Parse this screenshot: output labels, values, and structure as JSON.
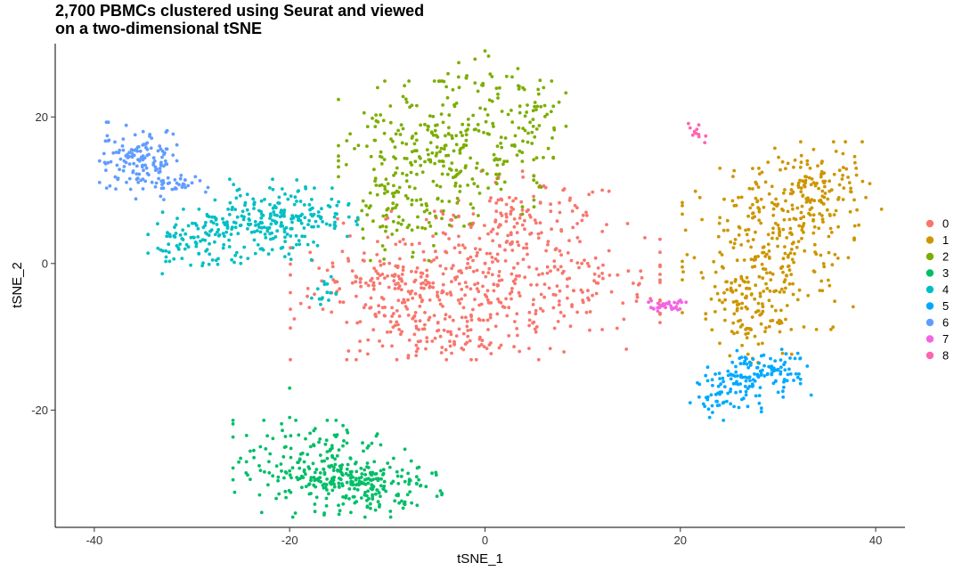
{
  "chart_data": {
    "type": "scatter",
    "title_lines": [
      "2,700 PBMCs clustered using Seurat and viewed",
      "on a two-dimensional tSNE"
    ],
    "xlabel": "tSNE_1",
    "ylabel": "tSNE_2",
    "xlim": [
      -44,
      43
    ],
    "ylim": [
      -36,
      30
    ],
    "xticks": [
      -40,
      -20,
      0,
      20,
      40
    ],
    "yticks": [
      -20,
      0,
      20
    ],
    "grid": false,
    "legend_position": "right",
    "series": [
      {
        "name": "0",
        "color": "#F8766D",
        "point_count": 690,
        "region": [
          {
            "x": -1,
            "y": -3,
            "sx": 8.6,
            "sy": 4.6,
            "w": 7
          },
          {
            "x": -9,
            "y": -4,
            "sx": 3,
            "sy": 3,
            "w": 1
          },
          {
            "x": 5,
            "y": 6,
            "sx": 3.5,
            "sy": 3,
            "w": 1.5
          },
          {
            "x": -4,
            "y": -10,
            "sx": 4,
            "sy": 1.5,
            "w": 1
          }
        ],
        "samples": [
          [
            -11,
            3
          ],
          [
            -7,
            -12
          ],
          [
            -2,
            -11
          ],
          [
            3,
            5
          ],
          [
            8,
            10
          ],
          [
            10,
            -5
          ],
          [
            -6,
            6
          ],
          [
            0,
            0
          ],
          [
            5,
            -8
          ],
          [
            12,
            10
          ]
        ]
      },
      {
        "name": "1",
        "color": "#CD9600",
        "point_count": 480,
        "region": [
          {
            "x": 29,
            "y": 2,
            "sx": 4,
            "sy": 5,
            "w": 4
          },
          {
            "x": 34,
            "y": 10,
            "sx": 3,
            "sy": 3,
            "w": 2
          },
          {
            "x": 27,
            "y": -7,
            "sx": 2,
            "sy": 3,
            "w": 1
          }
        ],
        "samples": [
          [
            22,
            9
          ],
          [
            38,
            13
          ],
          [
            39,
            9
          ],
          [
            24,
            -5
          ],
          [
            28,
            -11
          ],
          [
            33,
            14
          ],
          [
            26,
            5
          ]
        ]
      },
      {
        "name": "2",
        "color": "#7CAE00",
        "point_count": 420,
        "region": [
          {
            "x": -4,
            "y": 15,
            "sx": 5,
            "sy": 4.5,
            "w": 5
          },
          {
            "x": -9,
            "y": 7,
            "sx": 2,
            "sy": 3,
            "w": 1
          },
          {
            "x": 5,
            "y": 20,
            "sx": 1.5,
            "sy": 3,
            "w": 0.7
          },
          {
            "x": -1,
            "y": 25,
            "sx": 2,
            "sy": 1.5,
            "w": 0.5
          }
        ],
        "samples": [
          [
            -11,
            24
          ],
          [
            0,
            29
          ],
          [
            6,
            24
          ],
          [
            -13,
            6
          ],
          [
            5,
            12
          ],
          [
            -8,
            22
          ]
        ]
      },
      {
        "name": "3",
        "color": "#00BE67",
        "point_count": 370,
        "region": [
          {
            "x": -17,
            "y": -28,
            "sx": 4,
            "sy": 3,
            "w": 3
          },
          {
            "x": -11,
            "y": -30,
            "sx": 3,
            "sy": 2,
            "w": 1.5
          }
        ],
        "samples": [
          [
            -23,
            -25
          ],
          [
            -20,
            -17
          ],
          [
            -7,
            -30
          ],
          [
            -15,
            -33
          ],
          [
            -20,
            -21
          ]
        ]
      },
      {
        "name": "4",
        "color": "#00BFC4",
        "point_count": 350,
        "region": [
          {
            "x": -29,
            "y": 3,
            "sx": 2.5,
            "sy": 2,
            "w": 2
          },
          {
            "x": -22,
            "y": 6,
            "sx": 3,
            "sy": 2.5,
            "w": 3
          },
          {
            "x": -17,
            "y": 7,
            "sx": 2,
            "sy": 1.5,
            "w": 1
          },
          {
            "x": -16,
            "y": -4,
            "sx": 1,
            "sy": 1,
            "w": 0.4
          }
        ],
        "samples": [
          [
            -33,
            7
          ],
          [
            -25,
            0
          ],
          [
            -14,
            8
          ],
          [
            -16,
            -5
          ]
        ]
      },
      {
        "name": "5",
        "color": "#00A9FF",
        "point_count": 170,
        "region": [
          {
            "x": 25,
            "y": -17,
            "sx": 1.5,
            "sy": 2,
            "w": 1.5
          },
          {
            "x": 29,
            "y": -15,
            "sx": 2,
            "sy": 1.5,
            "w": 1.5
          }
        ],
        "samples": [
          [
            21,
            -19
          ],
          [
            33,
            -14
          ],
          [
            23,
            -21
          ]
        ]
      },
      {
        "name": "6",
        "color": "#619CFF",
        "point_count": 170,
        "region": [
          {
            "x": -35.5,
            "y": 14,
            "sx": 1.8,
            "sy": 2.4,
            "w": 3
          },
          {
            "x": -31,
            "y": 11,
            "sx": 1.2,
            "sy": 0.6,
            "w": 0.5
          }
        ],
        "samples": [
          [
            -39,
            15
          ],
          [
            -35,
            18
          ],
          [
            -30,
            11
          ]
        ]
      },
      {
        "name": "7",
        "color": "#F564E3",
        "point_count": 32,
        "region": [
          {
            "x": 18.5,
            "y": -5.6,
            "sx": 1.2,
            "sy": 0.4,
            "w": 1
          }
        ],
        "samples": [
          [
            17,
            -6
          ],
          [
            20,
            -5
          ]
        ]
      },
      {
        "name": "8",
        "color": "#FF64B0",
        "point_count": 12,
        "region": [
          {
            "x": 21.5,
            "y": 18,
            "sx": 0.5,
            "sy": 0.5,
            "w": 1
          }
        ],
        "samples": [
          [
            21,
            18.5
          ],
          [
            22.5,
            16.5
          ]
        ]
      }
    ]
  }
}
